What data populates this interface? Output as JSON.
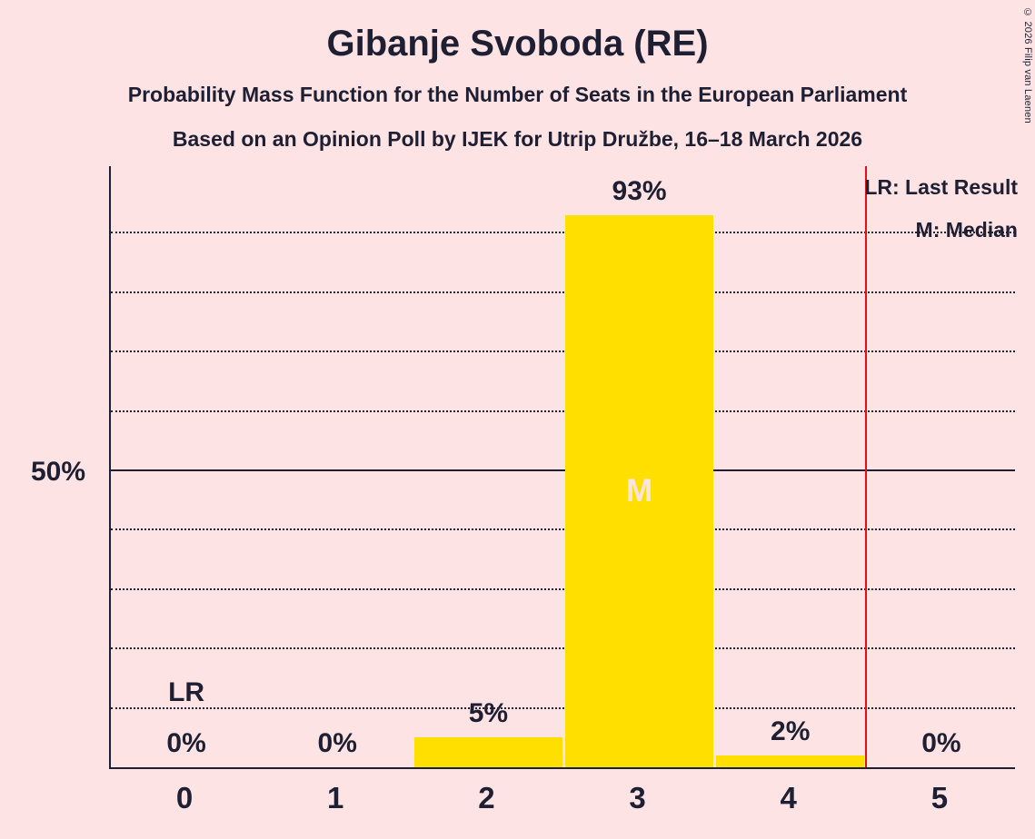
{
  "title": "Gibanje Svoboda (RE)",
  "subtitles": [
    "Probability Mass Function for the Number of Seats in the European Parliament",
    "Based on an Opinion Poll by IJEK for Utrip Družbe, 16–18 March 2026"
  ],
  "copyright": "© 2026 Filip van Laenen",
  "legend": {
    "last_result": "LR: Last Result",
    "median": "M: Median"
  },
  "y_axis": {
    "label": "50%"
  },
  "chart_data": {
    "type": "bar",
    "title": "Gibanje Svoboda (RE)",
    "categories": [
      "0",
      "1",
      "2",
      "3",
      "4",
      "5"
    ],
    "values": [
      0,
      0,
      5,
      93,
      2,
      0
    ],
    "value_labels": [
      "0%",
      "0%",
      "5%",
      "93%",
      "2%",
      "0%"
    ],
    "xlabel": "",
    "ylabel": "",
    "ylim": [
      0,
      100
    ],
    "y_gridlines_pct": [
      10,
      20,
      30,
      40,
      50,
      60,
      70,
      80,
      90
    ],
    "solid_gridline_pct": 50,
    "grid_style": "dotted",
    "median_category": "3",
    "median_marker": "M",
    "last_result_category": "0",
    "last_result_marker": "LR",
    "red_line_seat_position": 4.5,
    "legend_position": "top-right"
  },
  "colors": {
    "background": "#fde3e3",
    "bar": "#ffdf00",
    "text": "#1f1f33",
    "red_line": "#e3101c",
    "median_letter": "#fde3e3"
  }
}
